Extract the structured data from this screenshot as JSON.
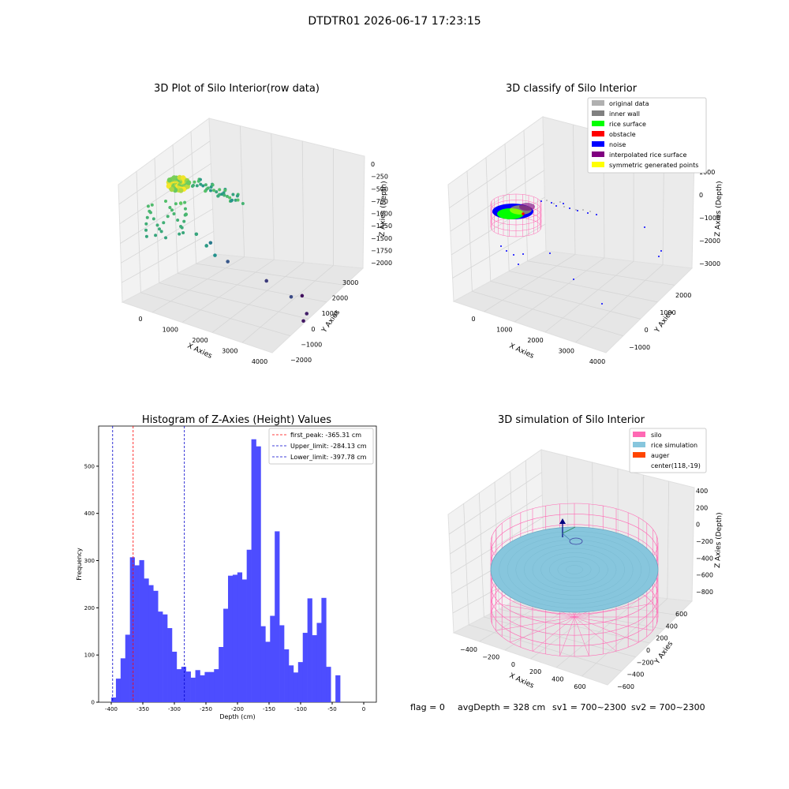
{
  "suptitle": "DTDTR01 2026-06-17 17:23:15",
  "footer": {
    "flag": "flag = 0",
    "avg_depth": "avgDepth = 328 cm",
    "sv1": "sv1 = 700~2300",
    "sv2": "sv2 = 700~2300"
  },
  "colors": {
    "hist_bar": "#4d4dff",
    "first_peak": "#ff0000",
    "limit": "#0000cc",
    "silo": "#ff69b4",
    "rice": "#87c6dd",
    "auger": "#ff4500",
    "pane_gray": "#f2f2f2",
    "grid": "#d9d9d9"
  },
  "chart_data": [
    {
      "type": "scatter",
      "projection": "3d",
      "title": "3D Plot of Silo Interior(row data)",
      "xlabel": "X Axies",
      "ylabel": "Y Axies",
      "zlabel": "Z Axies (Depth)",
      "xticks": [
        "0",
        "1000",
        "2000",
        "3000",
        "4000"
      ],
      "yticks": [
        "−2000",
        "−1000",
        "0",
        "1000",
        "2000",
        "3000"
      ],
      "zticks": [
        "0",
        "−250",
        "−500",
        "−750",
        "−1000",
        "−1250",
        "−1500",
        "−1750",
        "−2000"
      ],
      "xlim": [
        -500,
        4000
      ],
      "ylim": [
        -2000,
        3500
      ],
      "zlim": [
        -2100,
        100
      ],
      "colormap": "viridis (by depth)",
      "points": [
        {
          "x": 100,
          "y": 1500,
          "z": -450
        },
        {
          "x": 300,
          "y": 1600,
          "z": -600
        },
        {
          "x": 800,
          "y": 2000,
          "z": -800
        },
        {
          "x": 1200,
          "y": 2200,
          "z": -900
        },
        {
          "x": 1500,
          "y": 2300,
          "z": -1000
        },
        {
          "x": 600,
          "y": 800,
          "z": -1200
        },
        {
          "x": 1000,
          "y": 600,
          "z": -1500
        },
        {
          "x": 2000,
          "y": 300,
          "z": -1700
        },
        {
          "x": 3200,
          "y": 1200,
          "z": -1600
        },
        {
          "x": 3500,
          "y": 900,
          "z": -1900
        },
        {
          "x": 3600,
          "y": 1300,
          "z": -1950
        },
        {
          "x": 2600,
          "y": -600,
          "z": -2000
        }
      ]
    },
    {
      "type": "scatter",
      "projection": "3d",
      "title": "3D classify of Silo Interior",
      "xlabel": "X Axies",
      "ylabel": "Y Axies",
      "zlabel": "Z Axies (Depth)",
      "xticks": [
        "0",
        "1000",
        "2000",
        "3000",
        "4000"
      ],
      "yticks": [
        "−1000",
        "0",
        "1000",
        "2000"
      ],
      "zticks": [
        "1000",
        "0",
        "−1000",
        "−2000",
        "−3000"
      ],
      "legend_position": "upper right",
      "legend": [
        {
          "label": "original data",
          "color": "#b0b0b0"
        },
        {
          "label": "inner wall",
          "color": "#808080"
        },
        {
          "label": "rice surface",
          "color": "#00ff00"
        },
        {
          "label": "obstacle",
          "color": "#ff0000"
        },
        {
          "label": "noise",
          "color": "#0000ff"
        },
        {
          "label": "interpolated rice surface",
          "color": "#800080"
        },
        {
          "label": "symmetric generated points",
          "color": "#ffff00"
        }
      ]
    },
    {
      "type": "bar",
      "title": "Histogram of Z-Axies (Height) Values",
      "xlabel": "Depth (cm)",
      "ylabel": "Frequency",
      "xlim": [
        -420,
        20
      ],
      "ylim": [
        0,
        585
      ],
      "xticks": [
        -400,
        -350,
        -300,
        -250,
        -200,
        -150,
        -100,
        -50,
        0
      ],
      "yticks": [
        0,
        100,
        200,
        300,
        400,
        500
      ],
      "bin_width": 7.4,
      "bin_start": -400,
      "values": [
        10,
        50,
        93,
        143,
        307,
        290,
        301,
        262,
        248,
        236,
        192,
        186,
        157,
        107,
        70,
        75,
        65,
        52,
        68,
        57,
        64,
        64,
        70,
        117,
        198,
        268,
        270,
        275,
        260,
        323,
        557,
        542,
        161,
        128,
        183,
        362,
        163,
        112,
        78,
        63,
        85,
        147,
        220,
        142,
        168,
        221,
        75,
        0,
        57
      ],
      "legend_position": "upper right",
      "vlines": [
        {
          "label": "first_peak: -365.31 cm",
          "x": -365.31,
          "color": "#ff0000"
        },
        {
          "label": "Upper_limit: -284.13 cm",
          "x": -284.13,
          "color": "#0000cc"
        },
        {
          "label": "Lower_limit: -397.78 cm",
          "x": -397.78,
          "color": "#0000cc"
        }
      ]
    },
    {
      "type": "area",
      "projection": "3d",
      "title": "3D simulation of Silo Interior",
      "xlabel": "X Axies",
      "ylabel": "Y Axies",
      "zlabel": "Z Axies (Depth)",
      "xticks": [
        "−400",
        "−200",
        "0",
        "200",
        "400",
        "600"
      ],
      "yticks": [
        "−600",
        "−400",
        "−200",
        "0",
        "200",
        "400",
        "600"
      ],
      "zticks": [
        "400",
        "200",
        "0",
        "−200",
        "−400",
        "−600",
        "−800"
      ],
      "legend_position": "upper right",
      "legend": [
        {
          "label": "silo",
          "color": "#ff69b4"
        },
        {
          "label": "rice simulation",
          "color": "#87c6dd"
        },
        {
          "label": "auger",
          "color": "#ff4500"
        },
        {
          "label": "center(118,-19)",
          "color": ""
        }
      ]
    }
  ]
}
